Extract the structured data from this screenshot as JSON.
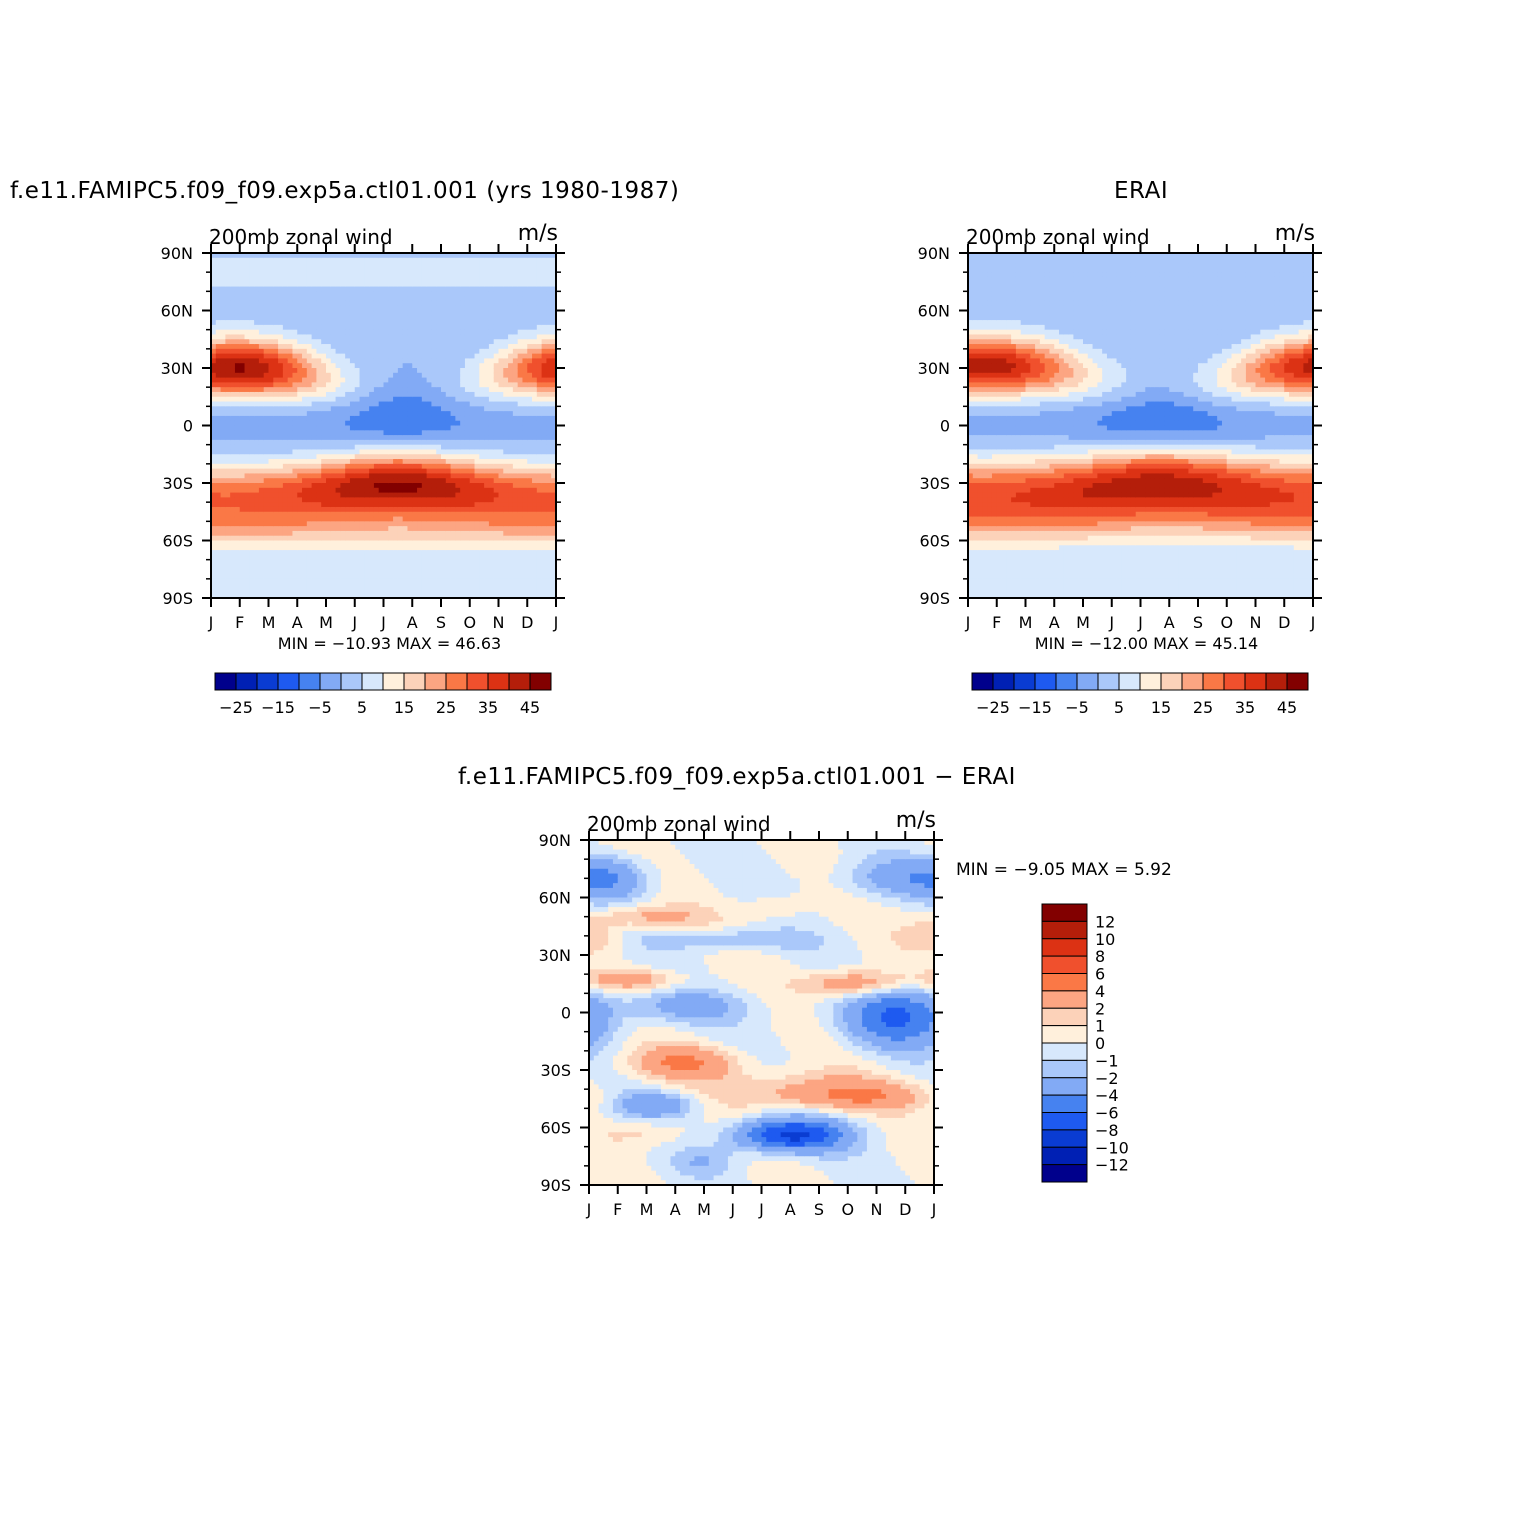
{
  "chart_data": [
    {
      "type": "heatmap",
      "title": "f.e11.FAMIPC5.f09_f09.exp5a.ctl01.001 (yrs 1980-1987)",
      "left_label": "200mb zonal wind",
      "right_label": "m/s",
      "x_tick_labels": [
        "J",
        "F",
        "M",
        "A",
        "M",
        "J",
        "J",
        "A",
        "S",
        "O",
        "N",
        "D",
        "J"
      ],
      "y_tick_labels": [
        "90N",
        "60N",
        "30N",
        "0",
        "30S",
        "60S",
        "90S"
      ],
      "y_values": [
        90,
        60,
        30,
        0,
        -30,
        -60,
        -90
      ],
      "xlim": [
        0,
        12
      ],
      "ylim": [
        -90,
        90
      ],
      "stats": "MIN = −10.93 MAX =   46.63",
      "min": -10.93,
      "max": 46.63,
      "colorbar": {
        "orientation": "horizontal",
        "levels": [
          -25,
          -20,
          -15,
          -10,
          -5,
          0,
          5,
          10,
          15,
          20,
          25,
          30,
          35,
          40,
          45
        ],
        "tick_labels": [
          "−25",
          "−15",
          "−5",
          "5",
          "15",
          "25",
          "35",
          "45"
        ]
      }
    },
    {
      "type": "heatmap",
      "title": "ERAI",
      "left_label": "200mb zonal wind",
      "right_label": "m/s",
      "x_tick_labels": [
        "J",
        "F",
        "M",
        "A",
        "M",
        "J",
        "J",
        "A",
        "S",
        "O",
        "N",
        "D",
        "J"
      ],
      "y_tick_labels": [
        "90N",
        "60N",
        "30N",
        "0",
        "30S",
        "60S",
        "90S"
      ],
      "y_values": [
        90,
        60,
        30,
        0,
        -30,
        -60,
        -90
      ],
      "xlim": [
        0,
        12
      ],
      "ylim": [
        -90,
        90
      ],
      "stats": "MIN = −12.00 MAX =   45.14",
      "min": -12.0,
      "max": 45.14,
      "colorbar": {
        "orientation": "horizontal",
        "levels": [
          -25,
          -20,
          -15,
          -10,
          -5,
          0,
          5,
          10,
          15,
          20,
          25,
          30,
          35,
          40,
          45
        ],
        "tick_labels": [
          "−25",
          "−15",
          "−5",
          "5",
          "15",
          "25",
          "35",
          "45"
        ]
      }
    },
    {
      "type": "heatmap",
      "title": "f.e11.FAMIPC5.f09_f09.exp5a.ctl01.001 − ERAI",
      "left_label": "200mb zonal wind",
      "right_label": "m/s",
      "x_tick_labels": [
        "J",
        "F",
        "M",
        "A",
        "M",
        "J",
        "J",
        "A",
        "S",
        "O",
        "N",
        "D",
        "J"
      ],
      "y_tick_labels": [
        "90N",
        "60N",
        "30N",
        "0",
        "30S",
        "60S",
        "90S"
      ],
      "y_values": [
        90,
        60,
        30,
        0,
        -30,
        -60,
        -90
      ],
      "xlim": [
        0,
        12
      ],
      "ylim": [
        -90,
        90
      ],
      "stats": "MIN =   −9.05 MAX =     5.92",
      "min": -9.05,
      "max": 5.92,
      "colorbar": {
        "orientation": "vertical",
        "levels": [
          12,
          10,
          8,
          6,
          4,
          2,
          1,
          0,
          -1,
          -2,
          -4,
          -6,
          -8,
          -10,
          -12
        ],
        "tick_labels": [
          "12",
          "10",
          "8",
          "6",
          "4",
          "2",
          "1",
          "0",
          "−1",
          "−2",
          "−4",
          "−6",
          "−8",
          "−10",
          "−12"
        ]
      }
    }
  ],
  "colors": {
    "palette": [
      "#00008c",
      "#0020b4",
      "#0a3cd2",
      "#1e5af0",
      "#4682f0",
      "#82aaf5",
      "#aac8fa",
      "#d7e8fc",
      "#fff0dc",
      "#fcd2b9",
      "#fca582",
      "#fa7846",
      "#f0502d",
      "#dc3214",
      "#b41e0a",
      "#820000"
    ]
  }
}
